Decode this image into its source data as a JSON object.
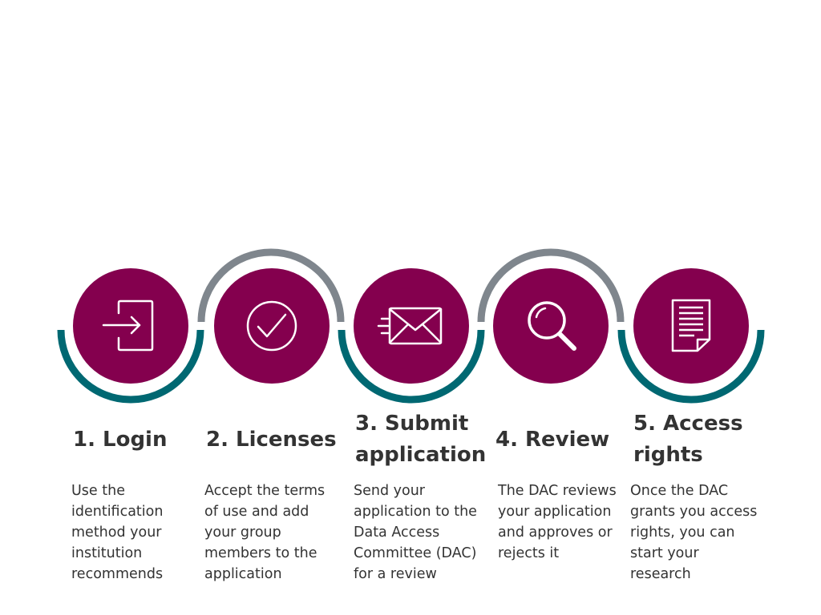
{
  "steps": [
    {
      "title": "1. Login",
      "description": [
        "Use the",
        "identification",
        "method your",
        "institution",
        "recommends"
      ],
      "icon": "login-icon"
    },
    {
      "title": "2. Licenses",
      "description": [
        "Accept the terms",
        "of use and add",
        "your group",
        "members to the",
        "application"
      ],
      "icon": "checkmark-icon"
    },
    {
      "title": "3. Submit application",
      "title_lines": [
        "3. Submit",
        "application"
      ],
      "description": [
        "Send your",
        "application to the",
        "Data Access",
        "Committee (DAC)",
        "for a review"
      ],
      "icon": "envelope-icon"
    },
    {
      "title": "4. Review",
      "description": [
        "The DAC reviews",
        "your application",
        "and approves or",
        "rejects it"
      ],
      "icon": "magnifier-icon"
    },
    {
      "title": "5. Access rights",
      "title_lines": [
        "5. Access",
        "rights"
      ],
      "description": [
        "Once the DAC",
        "grants you access",
        "rights, you can",
        "start your",
        "research"
      ],
      "icon": "document-icon"
    }
  ],
  "colors": {
    "circle": "#84004e",
    "teal_arc": "#006872",
    "gray_arc": "#7f868d",
    "text": "#333333"
  }
}
